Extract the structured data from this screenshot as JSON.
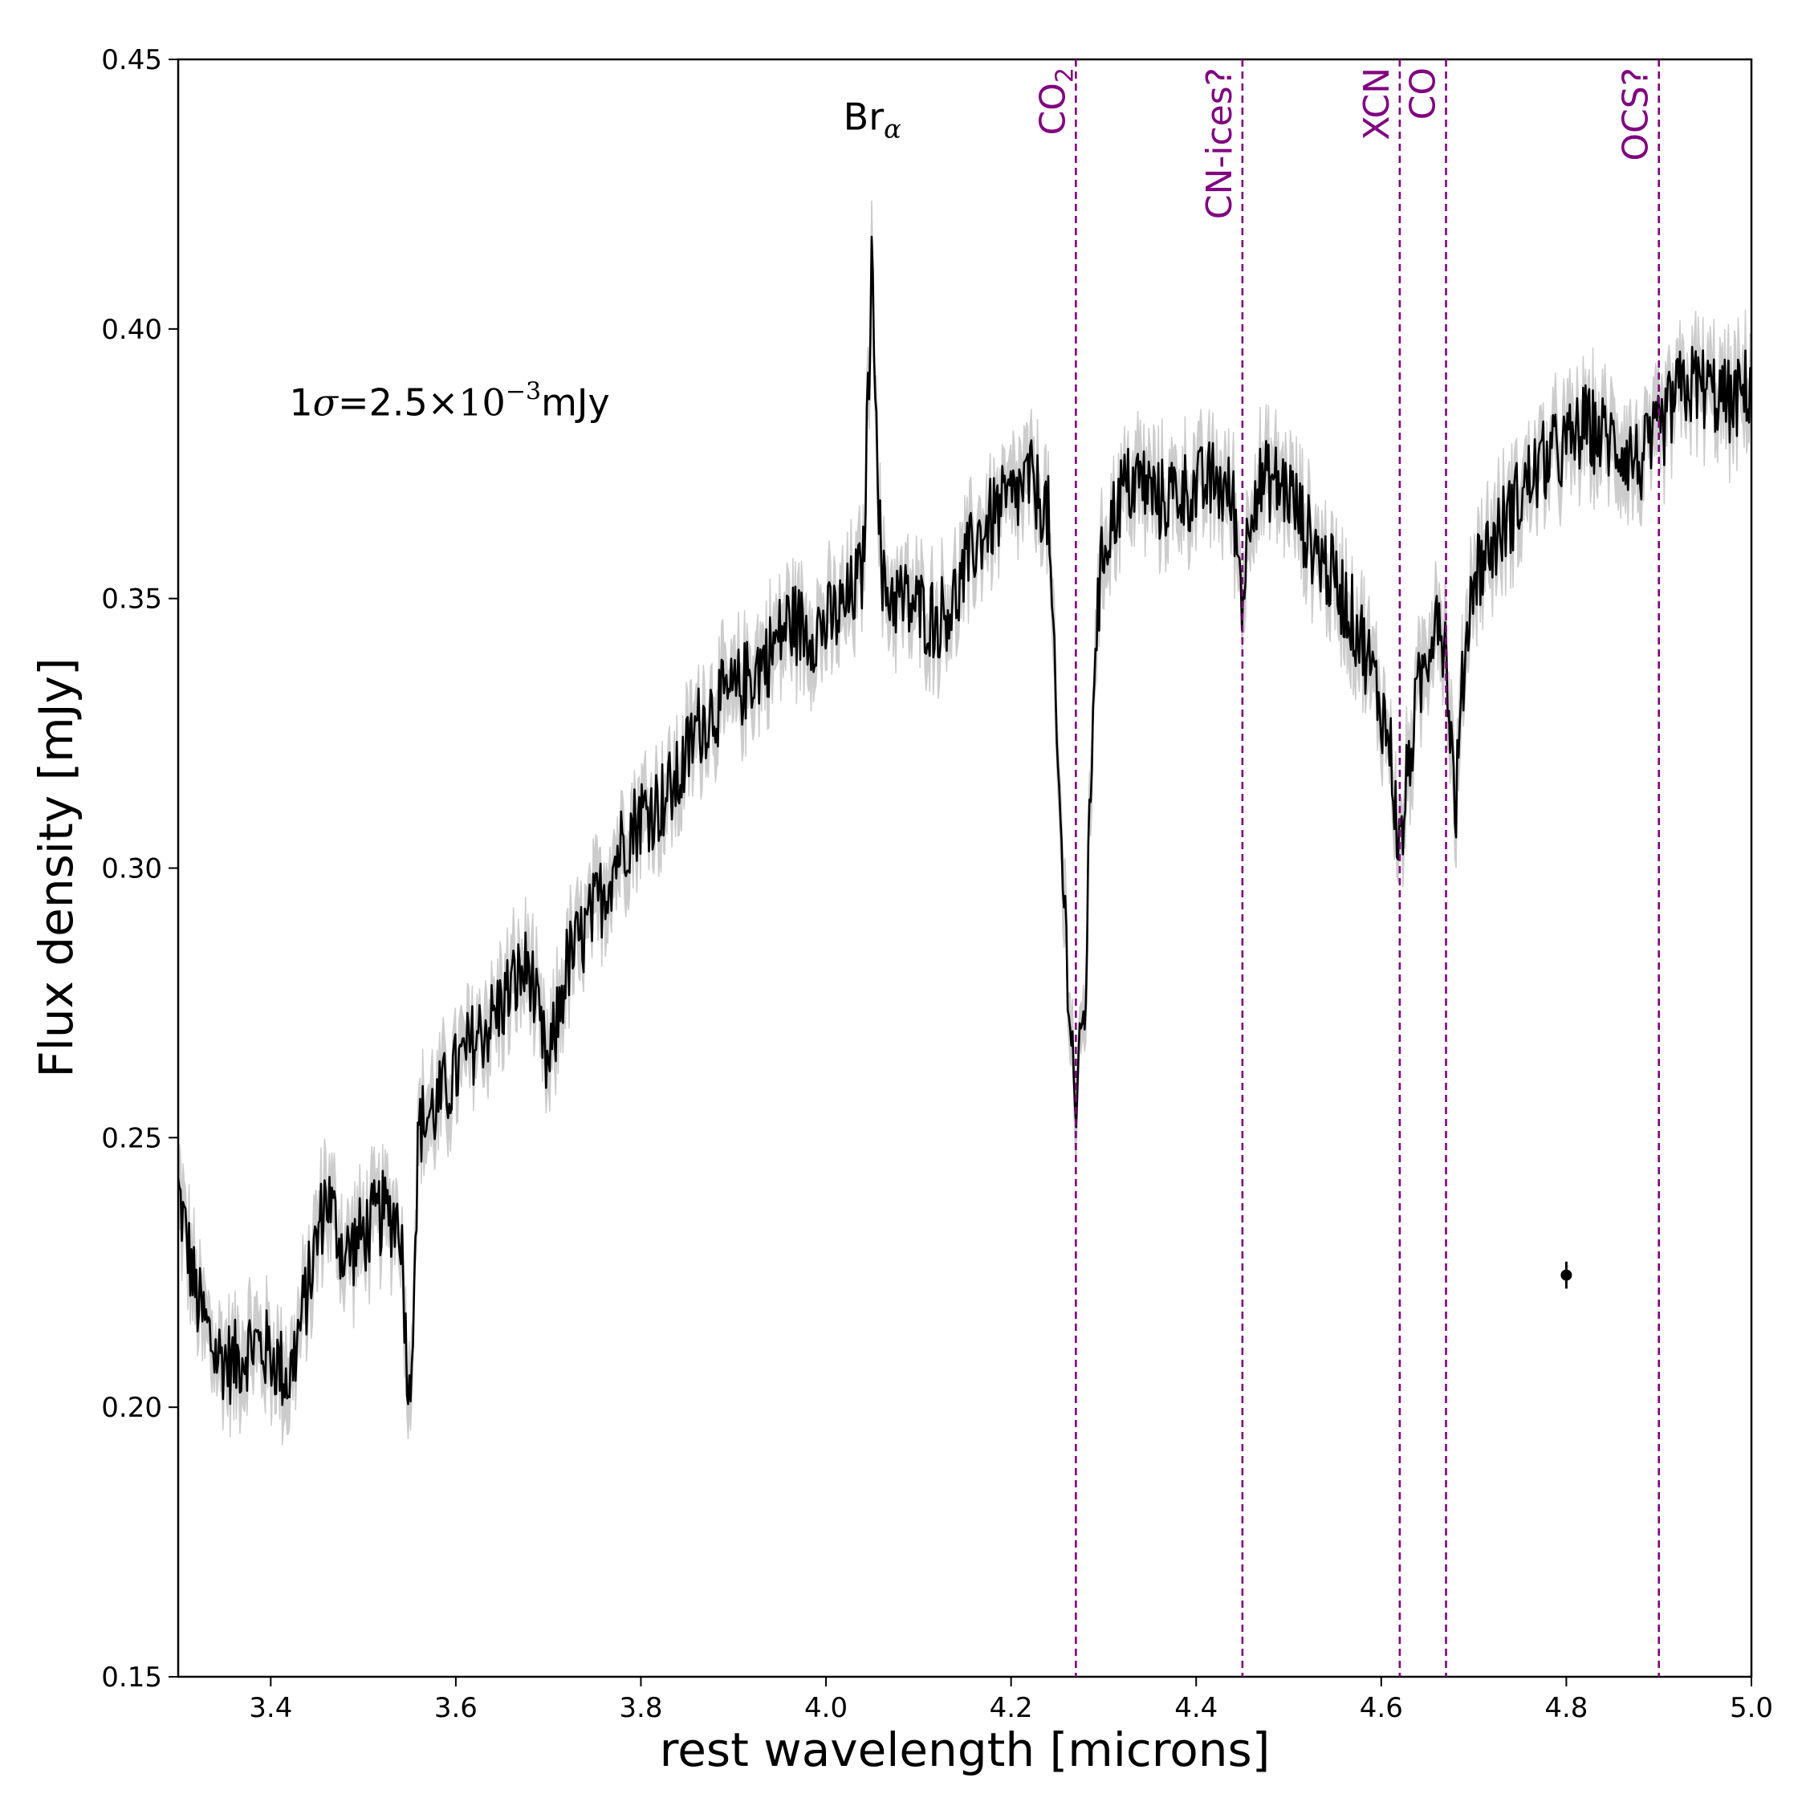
{
  "chart_data": {
    "type": "line",
    "xlabel": "rest wavelength [microns]",
    "ylabel": "Flux density [mJy]",
    "xlim": [
      3.3,
      5.0
    ],
    "ylim": [
      0.15,
      0.45
    ],
    "xticks": [
      3.4,
      3.6,
      3.8,
      4.0,
      4.2,
      4.4,
      4.6,
      4.8,
      5.0
    ],
    "xtick_labels": [
      "3.4",
      "3.6",
      "3.8",
      "4.0",
      "4.2",
      "4.4",
      "4.6",
      "4.8",
      "5.0"
    ],
    "yticks": [
      0.15,
      0.2,
      0.25,
      0.3,
      0.35,
      0.4,
      0.45
    ],
    "ytick_labels": [
      "0.15",
      "0.20",
      "0.25",
      "0.30",
      "0.35",
      "0.40",
      "0.45"
    ],
    "colors": {
      "spectrum": "#000000",
      "error_band": "#cccccc",
      "feature_lines": "#800080"
    },
    "series": [
      {
        "name": "spectrum",
        "x": [
          3.3,
          3.32,
          3.34,
          3.36,
          3.38,
          3.4,
          3.42,
          3.44,
          3.46,
          3.48,
          3.5,
          3.52,
          3.54,
          3.55,
          3.56,
          3.58,
          3.6,
          3.62,
          3.64,
          3.66,
          3.68,
          3.69,
          3.7,
          3.72,
          3.74,
          3.76,
          3.78,
          3.8,
          3.82,
          3.84,
          3.86,
          3.88,
          3.9,
          3.92,
          3.94,
          3.96,
          3.98,
          4.0,
          4.02,
          4.04,
          4.05,
          4.06,
          4.08,
          4.1,
          4.12,
          4.14,
          4.16,
          4.18,
          4.2,
          4.22,
          4.24,
          4.25,
          4.26,
          4.27,
          4.28,
          4.29,
          4.3,
          4.32,
          4.34,
          4.36,
          4.38,
          4.4,
          4.42,
          4.44,
          4.45,
          4.46,
          4.48,
          4.5,
          4.52,
          4.54,
          4.56,
          4.58,
          4.6,
          4.61,
          4.62,
          4.63,
          4.64,
          4.65,
          4.66,
          4.67,
          4.68,
          4.69,
          4.7,
          4.72,
          4.74,
          4.76,
          4.78,
          4.8,
          4.82,
          4.84,
          4.86,
          4.88,
          4.9,
          4.92,
          4.94,
          4.96,
          4.98,
          5.0
        ],
        "y": [
          0.24,
          0.22,
          0.21,
          0.208,
          0.212,
          0.21,
          0.205,
          0.222,
          0.24,
          0.228,
          0.232,
          0.236,
          0.235,
          0.2,
          0.252,
          0.256,
          0.262,
          0.268,
          0.272,
          0.278,
          0.282,
          0.27,
          0.262,
          0.282,
          0.288,
          0.296,
          0.305,
          0.31,
          0.312,
          0.316,
          0.326,
          0.33,
          0.332,
          0.336,
          0.34,
          0.346,
          0.344,
          0.345,
          0.348,
          0.355,
          0.414,
          0.352,
          0.35,
          0.348,
          0.346,
          0.35,
          0.36,
          0.365,
          0.368,
          0.372,
          0.366,
          0.32,
          0.285,
          0.255,
          0.275,
          0.34,
          0.36,
          0.37,
          0.372,
          0.368,
          0.37,
          0.37,
          0.372,
          0.368,
          0.35,
          0.37,
          0.372,
          0.37,
          0.362,
          0.356,
          0.35,
          0.342,
          0.33,
          0.322,
          0.302,
          0.32,
          0.332,
          0.34,
          0.35,
          0.34,
          0.31,
          0.34,
          0.355,
          0.36,
          0.366,
          0.372,
          0.376,
          0.378,
          0.382,
          0.38,
          0.378,
          0.375,
          0.38,
          0.388,
          0.39,
          0.388,
          0.386,
          0.39
        ]
      }
    ],
    "feature_lines": [
      {
        "x": 4.27,
        "label": "CO",
        "sub": "2"
      },
      {
        "x": 4.45,
        "label": "CN-ices?",
        "sub": ""
      },
      {
        "x": 4.62,
        "label": "XCN",
        "sub": ""
      },
      {
        "x": 4.67,
        "label": "CO",
        "sub": ""
      },
      {
        "x": 4.9,
        "label": "OCS?",
        "sub": ""
      }
    ],
    "annotations": {
      "bralpha_main": "Br",
      "bralpha_sub": "α",
      "bralpha_x": 4.05,
      "bralpha_y": 0.437,
      "sigma_prefix": "1",
      "sigma_symbol": "σ",
      "sigma_value": "=2.5×",
      "sigma_base": "10",
      "sigma_exp": "−3",
      "sigma_unit": "mJy",
      "sigma_x": 3.42,
      "sigma_y": 0.384
    },
    "error_point": {
      "x": 4.8,
      "y": 0.2245,
      "err": 0.0025
    }
  }
}
